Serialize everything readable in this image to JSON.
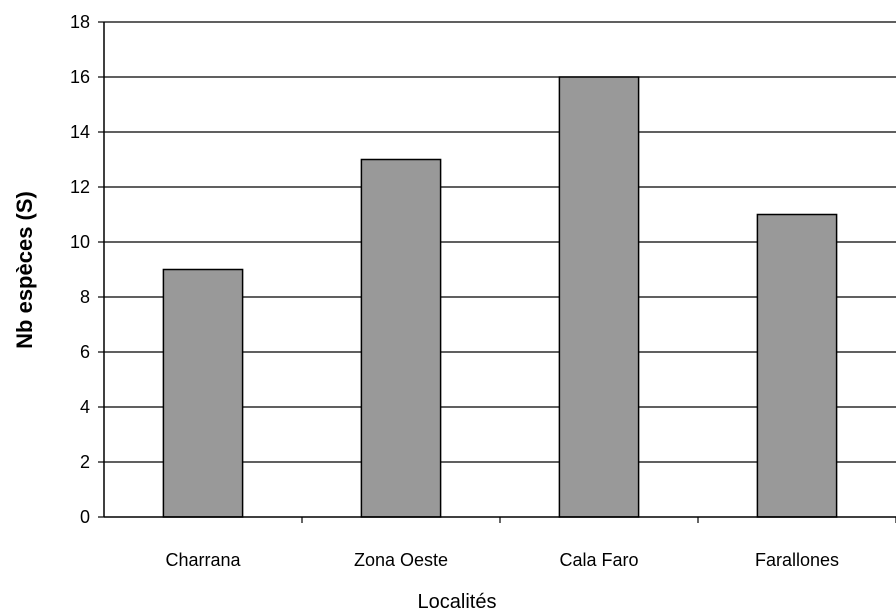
{
  "chart_data": {
    "type": "bar",
    "title": "",
    "xlabel": "Localités",
    "ylabel": "Nb espèces (S)",
    "categories": [
      "Charrana",
      "Zona Oeste",
      "Cala Faro",
      "Farallones"
    ],
    "values": [
      9,
      13,
      16,
      11
    ],
    "ylim": [
      0,
      18
    ],
    "yticks": [
      "0",
      "2",
      "4",
      "6",
      "8",
      "10",
      "12",
      "14",
      "16",
      "18"
    ],
    "grid": true,
    "legend": "none",
    "bar_color": "#999999",
    "bar_stroke": "#000000"
  }
}
